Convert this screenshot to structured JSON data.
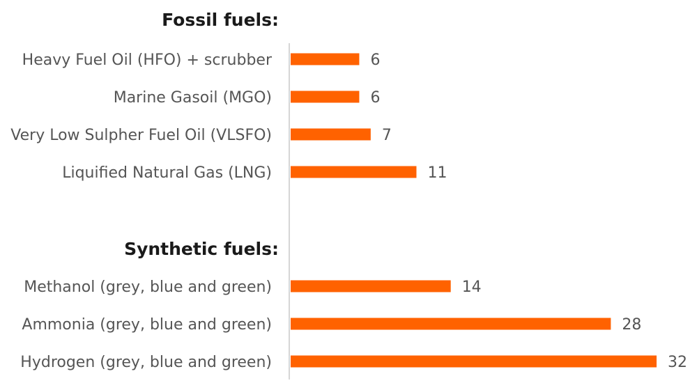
{
  "chart_data": {
    "type": "bar",
    "orientation": "horizontal",
    "bar_color": "#ff6200",
    "groups": [
      {
        "title": "Fossil fuels:",
        "categories": [
          "Heavy Fuel Oil (HFO) + scrubber",
          "Marine Gasoil (MGO)",
          "Very Low Sulpher Fuel Oil (VLSFO)",
          "Liquified Natural Gas (LNG)"
        ],
        "values": [
          6,
          6,
          7,
          11
        ]
      },
      {
        "title": "Synthetic fuels:",
        "categories": [
          "Methanol (grey, blue and green)",
          "Ammonia (grey, blue and green)",
          "Hydrogen (grey, blue and green)"
        ],
        "values": [
          14,
          28,
          32
        ]
      }
    ],
    "xlim": [
      0,
      32
    ],
    "grid": false,
    "legend": "none"
  }
}
